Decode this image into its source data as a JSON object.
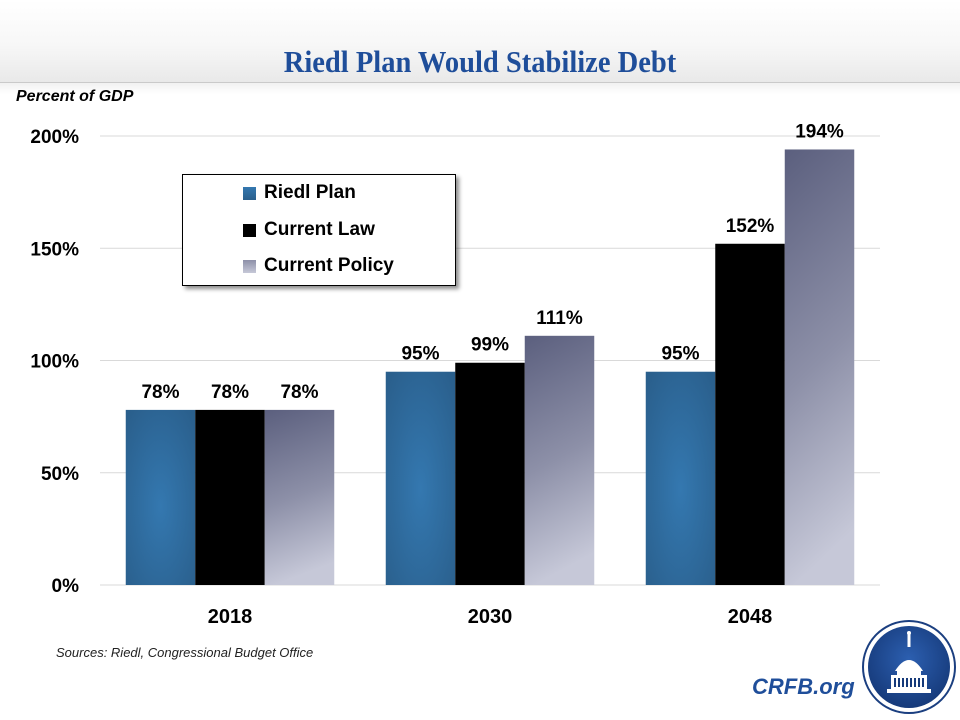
{
  "page": {
    "title": "Riedl Plan Would Stabilize Debt",
    "sources": "Sources: Riedl, Congressional Budget Office",
    "brand": "CRFB.org",
    "logo_icon": "capitol-dome-seal-icon"
  },
  "colors": {
    "title": "#1f4e9a",
    "riedl_plan": "#2f6a9e",
    "current_law": "#000000",
    "current_policy_top": "#5b5f7e",
    "current_policy_bottom": "#c6c8d8",
    "gridline": "#d9d9d9"
  },
  "chart_data": {
    "type": "bar",
    "title": "Riedl Plan Would Stabilize Debt",
    "ylabel": "Percent of GDP",
    "xlabel": "",
    "categories": [
      "2018",
      "2030",
      "2048"
    ],
    "series": [
      {
        "name": "Riedl Plan",
        "values": [
          78,
          95,
          95
        ],
        "labels": [
          "78%",
          "95%",
          "95%"
        ]
      },
      {
        "name": "Current Law",
        "values": [
          78,
          99,
          152
        ],
        "labels": [
          "78%",
          "99%",
          "152%"
        ]
      },
      {
        "name": "Current Policy",
        "values": [
          78,
          111,
          194
        ],
        "labels": [
          "78%",
          "111%",
          "194%"
        ]
      }
    ],
    "ylim": [
      0,
      200
    ],
    "yticks": [
      0,
      50,
      100,
      150,
      200
    ],
    "ytick_labels": [
      "0%",
      "50%",
      "100%",
      "150%",
      "200%"
    ],
    "grid": true,
    "legend": {
      "placement": "top-left",
      "entries": [
        "Riedl Plan",
        "Current Law",
        "Current Policy"
      ]
    }
  }
}
